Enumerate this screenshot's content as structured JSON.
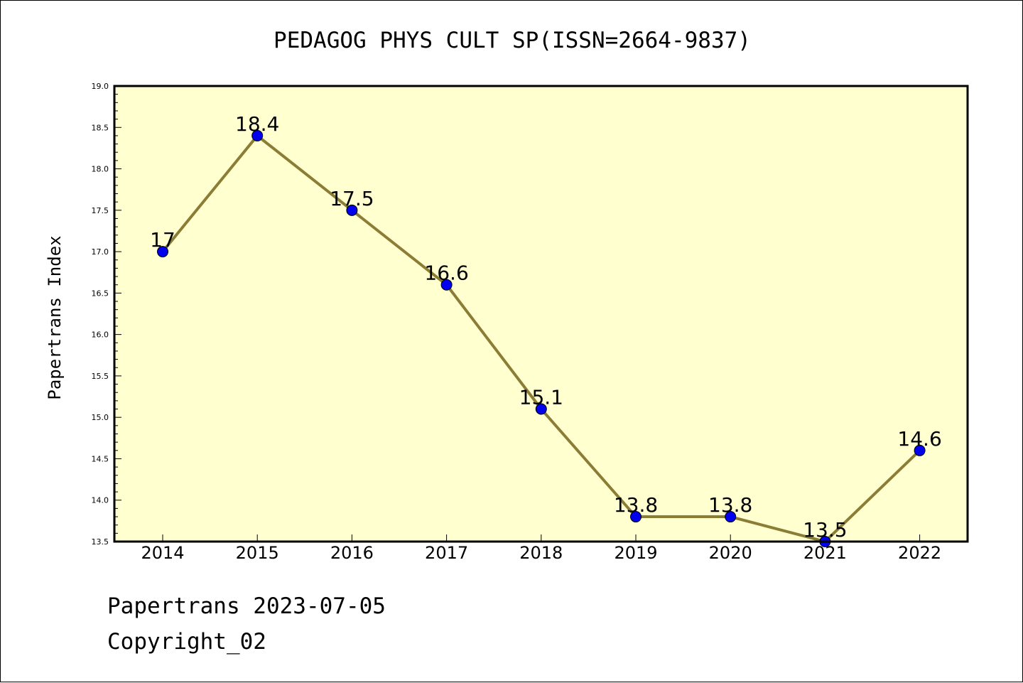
{
  "chart_data": {
    "type": "line",
    "title": "PEDAGOG PHYS CULT SP(ISSN=2664-9837)",
    "xlabel": "",
    "ylabel": "Papertrans Index",
    "categories": [
      "2014",
      "2015",
      "2016",
      "2017",
      "2018",
      "2019",
      "2020",
      "2021",
      "2022"
    ],
    "values": [
      17,
      18.4,
      17.5,
      16.6,
      15.1,
      13.8,
      13.8,
      13.5,
      14.6
    ],
    "data_labels": [
      "17",
      "18.4",
      "17.5",
      "16.6",
      "15.1",
      "13.8",
      "13.8",
      "13.5",
      "14.6"
    ],
    "ylim": [
      13.5,
      19.0
    ],
    "yticks": [
      "13.5",
      "14.0",
      "14.5",
      "15.0",
      "15.5",
      "16.0",
      "16.5",
      "17.0",
      "17.5",
      "18.0",
      "18.5",
      "19.0"
    ],
    "grid": false,
    "legend": "none"
  },
  "footer": {
    "date_line": "Papertrans 2023-07-05",
    "copyright_line": "Copyright_02"
  },
  "colors": {
    "plot_background": "#ffffd0",
    "line": "#8b7d35",
    "marker": "#0000ee"
  }
}
